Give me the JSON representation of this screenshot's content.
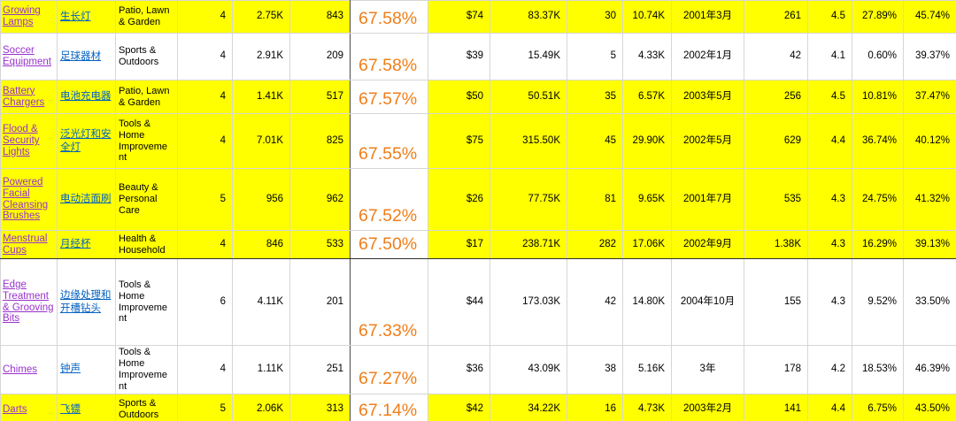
{
  "colors": {
    "highlight": "#FFFF00",
    "percent_orange": "#F07E1A",
    "link_purple": "#9932CC",
    "link_blue": "#0563C1"
  },
  "table": {
    "rows": [
      {
        "highlighted": true,
        "cells": [
          "Growing Lamps",
          "生长灯",
          "Patio, Lawn & Garden",
          "4",
          "2.75K",
          "843",
          "67.58%",
          "$74",
          "83.37K",
          "30",
          "10.74K",
          "2001年3月",
          "261",
          "4.5",
          "27.89%",
          "45.74%"
        ]
      },
      {
        "highlighted": false,
        "cells": [
          "Soccer Equipment",
          "足球器材",
          "Sports & Outdoors",
          "4",
          "2.91K",
          "209",
          "67.58%",
          "$39",
          "15.49K",
          "5",
          "4.33K",
          "2002年1月",
          "42",
          "4.1",
          "0.60%",
          "39.37%"
        ]
      },
      {
        "highlighted": true,
        "cells": [
          "Battery Chargers",
          "电池充电器",
          "Patio, Lawn & Garden",
          "4",
          "1.41K",
          "517",
          "67.57%",
          "$50",
          "50.51K",
          "35",
          "6.57K",
          "2003年5月",
          "256",
          "4.5",
          "10.81%",
          "37.47%"
        ]
      },
      {
        "highlighted": true,
        "cells": [
          "Flood & Security Lights",
          "泛光灯和安全灯",
          "Tools & Home Improvement",
          "4",
          "7.01K",
          "825",
          "67.55%",
          "$75",
          "315.50K",
          "45",
          "29.90K",
          "2002年5月",
          "629",
          "4.4",
          "36.74%",
          "40.12%"
        ]
      },
      {
        "highlighted": true,
        "cells": [
          "Powered Facial Cleansing Brushes",
          "电动洁面刷",
          "Beauty & Personal Care",
          "5",
          "956",
          "962",
          "67.52%",
          "$26",
          "77.75K",
          "81",
          "9.65K",
          "2001年7月",
          "535",
          "4.3",
          "24.75%",
          "41.32%"
        ]
      },
      {
        "highlighted": true,
        "cells": [
          "Menstrual Cups",
          "月经杯",
          "Health & Household",
          "4",
          "846",
          "533",
          "67.50%",
          "$17",
          "238.71K",
          "282",
          "17.06K",
          "2002年9月",
          "1.38K",
          "4.3",
          "16.29%",
          "39.13%"
        ]
      },
      {
        "highlighted": false,
        "cells": [
          "Edge Treatment & Grooving Bits",
          "边缘处理和开槽钻头",
          "Tools & Home Improvement",
          "6",
          "4.11K",
          "201",
          "67.33%",
          "$44",
          "173.03K",
          "42",
          "14.80K",
          "2004年10月",
          "155",
          "4.3",
          "9.52%",
          "33.50%"
        ]
      },
      {
        "highlighted": false,
        "cells": [
          "Chimes",
          "钟声",
          "Tools & Home Improvement",
          "4",
          "1.11K",
          "251",
          "67.27%",
          "$36",
          "43.09K",
          "38",
          "5.16K",
          "3年",
          "178",
          "4.2",
          "18.53%",
          "46.39%"
        ]
      },
      {
        "highlighted": true,
        "cells": [
          "Darts",
          "飞镖",
          "Sports & Outdoors",
          "5",
          "2.06K",
          "313",
          "67.14%",
          "$42",
          "34.22K",
          "16",
          "4.73K",
          "2003年2月",
          "141",
          "4.4",
          "6.75%",
          "43.50%"
        ]
      }
    ]
  }
}
